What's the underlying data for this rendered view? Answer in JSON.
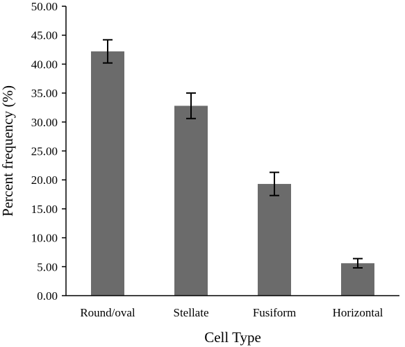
{
  "chart_data": {
    "type": "bar",
    "categories": [
      "Round/oval",
      "Stellate",
      "Fusiform",
      "Horizontal"
    ],
    "values": [
      42.2,
      32.8,
      19.3,
      5.6
    ],
    "errors": [
      2.0,
      2.2,
      2.0,
      0.8
    ],
    "xlabel": "Cell Type",
    "ylabel": "Percent frequency (%)",
    "ylim": [
      0,
      50
    ],
    "yticks": [
      "0.00",
      "5.00",
      "10.00",
      "15.00",
      "20.00",
      "25.00",
      "30.00",
      "35.00",
      "40.00",
      "45.00",
      "50.00"
    ],
    "grid": false,
    "legend": "none",
    "bar_color": "#6b6b6b",
    "error_bar_color": "#000000"
  }
}
